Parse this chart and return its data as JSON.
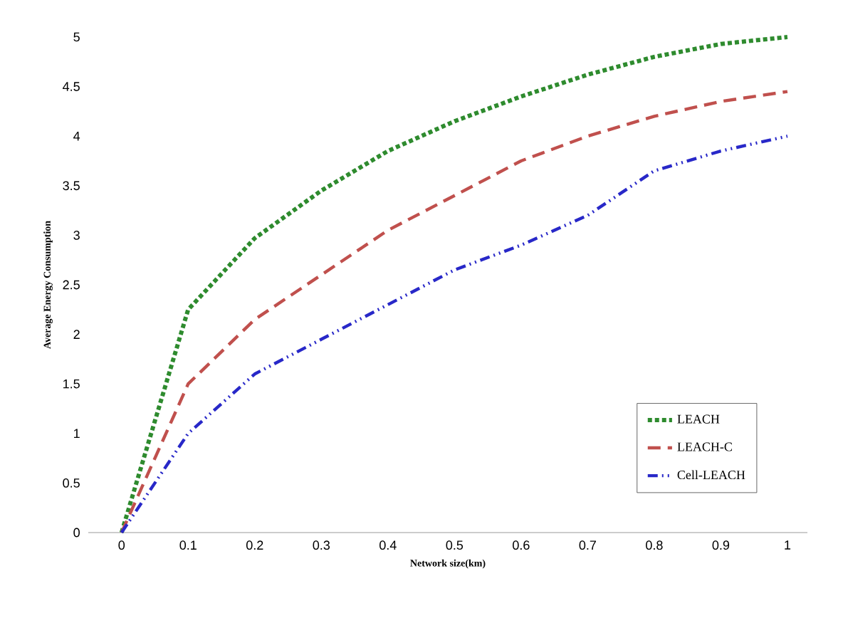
{
  "chart_data": {
    "type": "line",
    "xlabel": "Network size(km)",
    "ylabel": "Average  Energy Consumption",
    "x": [
      0,
      0.1,
      0.2,
      0.3,
      0.4,
      0.5,
      0.6,
      0.7,
      0.8,
      0.9,
      1
    ],
    "series": [
      {
        "name": "LEACH",
        "color": "#2e8b2e",
        "line_style": "dotted",
        "values": [
          0,
          2.25,
          2.97,
          3.45,
          3.85,
          4.15,
          4.4,
          4.62,
          4.8,
          4.93,
          5.0
        ]
      },
      {
        "name": "LEACH-C",
        "color": "#c0504d",
        "line_style": "dashed",
        "values": [
          0,
          1.5,
          2.15,
          2.6,
          3.05,
          3.4,
          3.75,
          4.0,
          4.2,
          4.35,
          4.45
        ]
      },
      {
        "name": "Cell-LEACH",
        "color": "#2828c8",
        "line_style": "dashdotted",
        "values": [
          0,
          1.0,
          1.6,
          1.95,
          2.3,
          2.65,
          2.9,
          3.2,
          3.65,
          3.85,
          4.0
        ]
      }
    ],
    "xlim": [
      -0.05,
      1.03
    ],
    "ylim": [
      0,
      5
    ],
    "xticks": [
      0,
      0.1,
      0.2,
      0.3,
      0.4,
      0.5,
      0.6,
      0.7,
      0.8,
      0.9,
      1
    ],
    "yticks": [
      0,
      0.5,
      1,
      1.5,
      2,
      2.5,
      3,
      3.5,
      4,
      4.5,
      5
    ],
    "grid": false,
    "legend": "bottom right"
  }
}
